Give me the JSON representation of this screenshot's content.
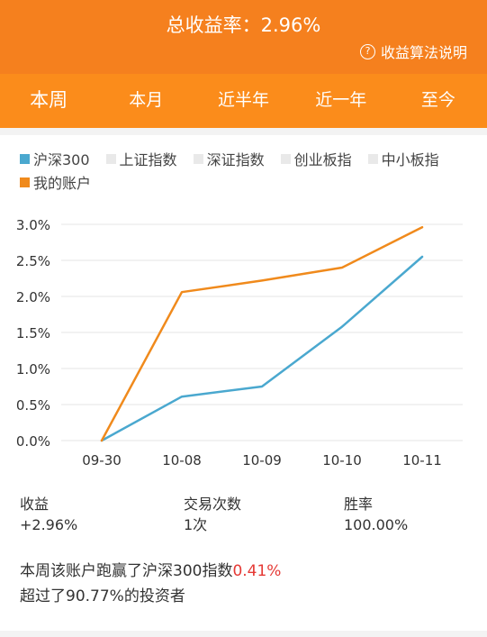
{
  "header": {
    "total_label": "总收益率：",
    "total_value": "2.96%",
    "help_icon": "question-circle-icon",
    "help_label": "收益算法说明"
  },
  "tabs": [
    {
      "label": "本周",
      "active": true
    },
    {
      "label": "本月",
      "active": false
    },
    {
      "label": "近半年",
      "active": false
    },
    {
      "label": "近一年",
      "active": false
    },
    {
      "label": "至今",
      "active": false
    }
  ],
  "legend": [
    {
      "label": "沪深300",
      "color": "#4aa8cf",
      "active": true
    },
    {
      "label": "上证指数",
      "color": "#e9e9e9",
      "active": false
    },
    {
      "label": "深证指数",
      "color": "#e9e9e9",
      "active": false
    },
    {
      "label": "创业板指",
      "color": "#e9e9e9",
      "active": false
    },
    {
      "label": "中小板指",
      "color": "#e9e9e9",
      "active": false
    },
    {
      "label": "我的账户",
      "color": "#f08a1c",
      "active": true
    }
  ],
  "chart_data": {
    "type": "line",
    "x": [
      "09-30",
      "10-08",
      "10-09",
      "10-10",
      "10-11"
    ],
    "ylim": [
      0,
      3.0
    ],
    "y_ticks": [
      "0.0%",
      "0.5%",
      "1.0%",
      "1.5%",
      "2.0%",
      "2.5%",
      "3.0%"
    ],
    "grid": true,
    "series": [
      {
        "name": "沪深300",
        "color": "#4aa8cf",
        "values": [
          0.0,
          0.61,
          0.75,
          1.58,
          2.55
        ]
      },
      {
        "name": "我的账户",
        "color": "#f08a1c",
        "values": [
          0.0,
          2.06,
          2.22,
          2.4,
          2.96
        ]
      }
    ]
  },
  "stats": [
    {
      "label": "收益",
      "value": "+2.96%"
    },
    {
      "label": "交易次数",
      "value": "1次"
    },
    {
      "label": "胜率",
      "value": "100.00%"
    }
  ],
  "summary": {
    "line1_prefix": "本周该账户跑赢了沪深300指数",
    "line1_value": "0.41%",
    "line2": "超过了90.77%的投资者"
  }
}
